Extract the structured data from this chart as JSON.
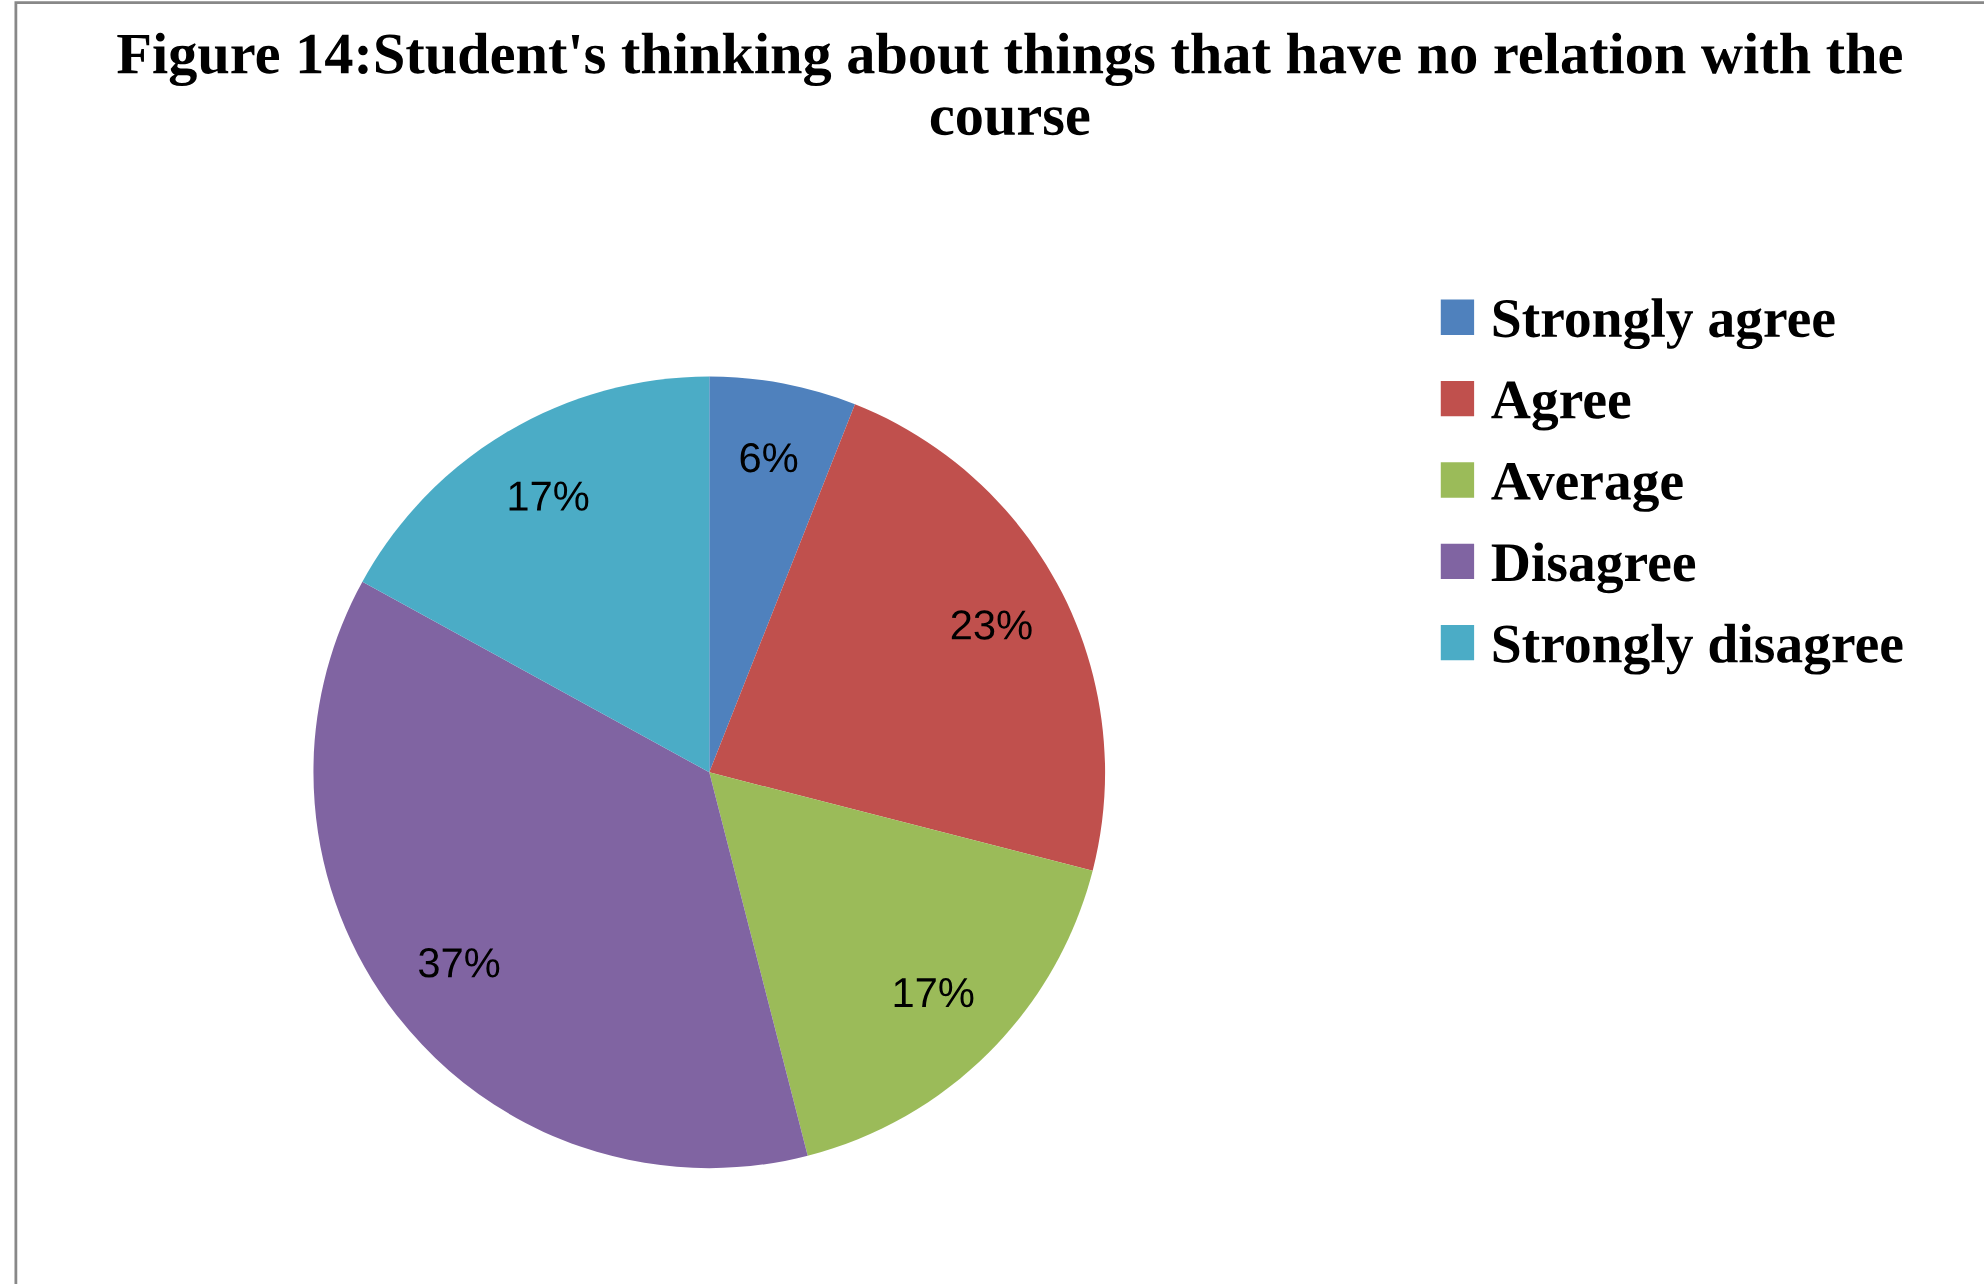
{
  "chart_data": {
    "type": "pie",
    "title": "Figure 14:Student's thinking about things that have no relation with the course",
    "categories": [
      "Strongly agree",
      "Agree",
      "Average",
      "Disagree",
      "Strongly disagree"
    ],
    "values": [
      6,
      23,
      17,
      37,
      17
    ],
    "value_labels": [
      "6%",
      "23%",
      "17%",
      "37%",
      "17%"
    ],
    "colors": [
      "#4f81bd",
      "#c0504d",
      "#9bbb59",
      "#8064a2",
      "#4bacc6"
    ],
    "legend": "right"
  }
}
